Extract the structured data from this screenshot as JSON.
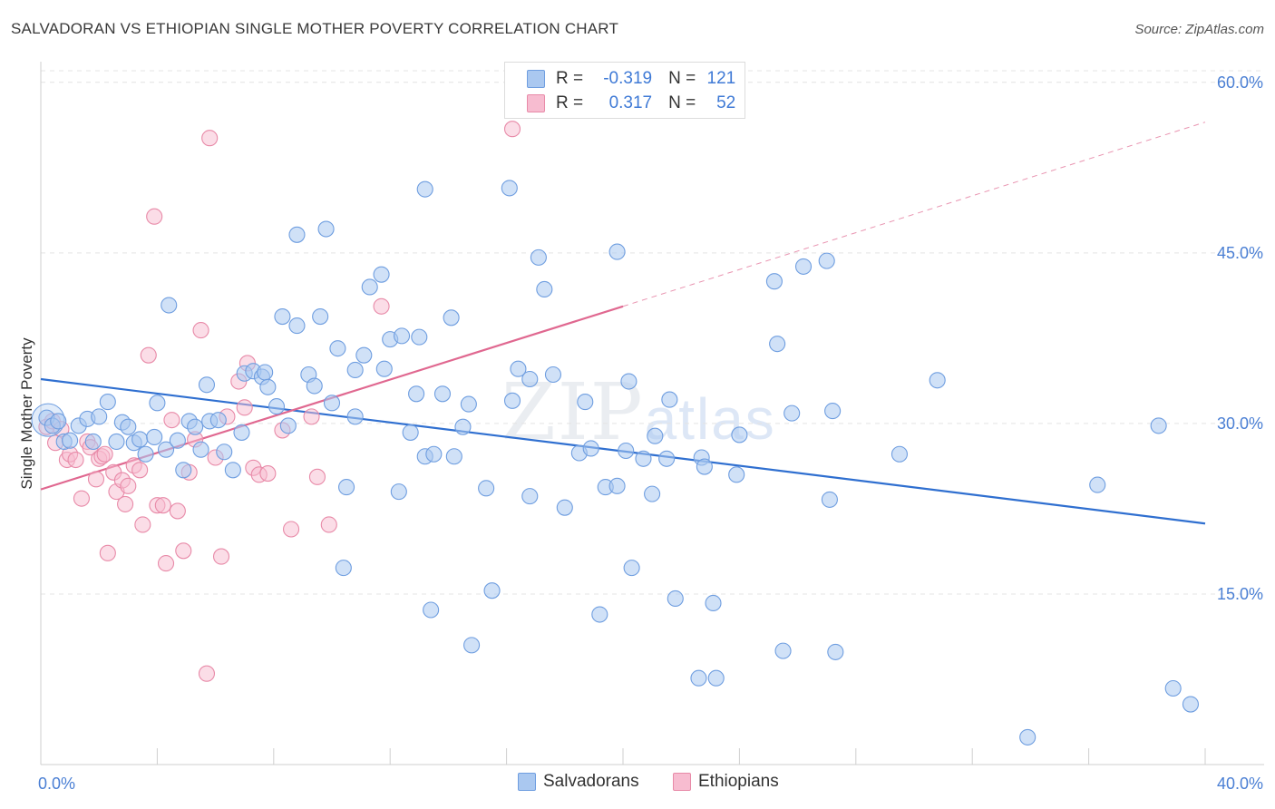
{
  "header": {
    "title": "SALVADORAN VS ETHIOPIAN SINGLE MOTHER POVERTY CORRELATION CHART",
    "source": "Source: ZipAtlas.com"
  },
  "watermark": {
    "zip": "ZIP",
    "atlas": "atlas"
  },
  "colors": {
    "salvadorans_fill": "#aac8f0",
    "salvadorans_stroke": "#6f9ee0",
    "salvadorans_line": "#2f6fd0",
    "ethiopians_fill": "#f7bcd0",
    "ethiopians_stroke": "#e88aa8",
    "ethiopians_line": "#e06890",
    "tick_label": "#4a7fd4",
    "grid": "#e4e4e4"
  },
  "legend_top": {
    "rows": [
      {
        "r_label": "R =",
        "r_value": "-0.319",
        "n_label": "N =",
        "n_value": "121"
      },
      {
        "r_label": "R =",
        "r_value": "0.317",
        "n_label": "N =",
        "n_value": "52"
      }
    ]
  },
  "legend_bottom": {
    "items": [
      {
        "label": "Salvadorans"
      },
      {
        "label": "Ethiopians"
      }
    ]
  },
  "chart_data": {
    "type": "scatter",
    "title": "SALVADORAN VS ETHIOPIAN SINGLE MOTHER POVERTY CORRELATION CHART",
    "xlabel": "",
    "ylabel": "Single Mother Poverty",
    "xlim": [
      0,
      42
    ],
    "ylim": [
      0,
      61.5
    ],
    "x_tick_labels": [
      "0.0%",
      "40.0%"
    ],
    "y_ticks": [
      15,
      30,
      45,
      60
    ],
    "y_tick_labels": [
      "15.0%",
      "30.0%",
      "45.0%",
      "60.0%"
    ],
    "grid": true,
    "legend_position": "top-center and bottom",
    "series": [
      {
        "name": "Salvadorans",
        "r": -0.319,
        "n": 121,
        "trend": {
          "x": [
            0,
            40
          ],
          "y": [
            33.9,
            21.2
          ]
        },
        "points": [
          [
            0.2,
            30.5
          ],
          [
            0.4,
            29.8
          ],
          [
            0.6,
            30.2
          ],
          [
            0.8,
            28.4
          ],
          [
            1.0,
            28.5
          ],
          [
            1.3,
            29.8
          ],
          [
            1.6,
            30.4
          ],
          [
            1.8,
            28.4
          ],
          [
            2.0,
            30.6
          ],
          [
            2.3,
            31.9
          ],
          [
            2.6,
            28.4
          ],
          [
            2.8,
            30.1
          ],
          [
            3.0,
            29.7
          ],
          [
            3.2,
            28.3
          ],
          [
            3.4,
            28.6
          ],
          [
            3.6,
            27.3
          ],
          [
            3.9,
            28.8
          ],
          [
            4.0,
            31.8
          ],
          [
            4.3,
            27.7
          ],
          [
            4.4,
            40.4
          ],
          [
            4.7,
            28.5
          ],
          [
            4.9,
            25.9
          ],
          [
            5.1,
            30.2
          ],
          [
            5.3,
            29.7
          ],
          [
            5.5,
            27.7
          ],
          [
            5.7,
            33.4
          ],
          [
            5.8,
            30.2
          ],
          [
            6.1,
            30.3
          ],
          [
            6.3,
            27.5
          ],
          [
            6.6,
            25.9
          ],
          [
            6.9,
            29.2
          ],
          [
            7.0,
            34.4
          ],
          [
            7.3,
            34.6
          ],
          [
            7.6,
            34.1
          ],
          [
            7.7,
            34.5
          ],
          [
            7.8,
            33.2
          ],
          [
            8.1,
            31.5
          ],
          [
            8.3,
            39.4
          ],
          [
            8.5,
            29.8
          ],
          [
            8.8,
            46.6
          ],
          [
            8.8,
            38.6
          ],
          [
            9.2,
            34.3
          ],
          [
            9.4,
            33.3
          ],
          [
            9.6,
            39.4
          ],
          [
            9.8,
            47.1
          ],
          [
            10.0,
            31.8
          ],
          [
            10.2,
            36.6
          ],
          [
            10.5,
            24.4
          ],
          [
            10.4,
            17.3
          ],
          [
            10.8,
            30.6
          ],
          [
            10.8,
            34.7
          ],
          [
            11.1,
            36.0
          ],
          [
            11.3,
            42.0
          ],
          [
            11.7,
            43.1
          ],
          [
            11.8,
            34.8
          ],
          [
            12.0,
            37.4
          ],
          [
            12.3,
            24.0
          ],
          [
            12.4,
            37.7
          ],
          [
            12.7,
            29.2
          ],
          [
            12.9,
            32.6
          ],
          [
            13.0,
            37.6
          ],
          [
            13.2,
            27.1
          ],
          [
            13.2,
            50.6
          ],
          [
            13.4,
            13.6
          ],
          [
            13.5,
            27.3
          ],
          [
            13.8,
            32.6
          ],
          [
            14.1,
            39.3
          ],
          [
            14.2,
            27.1
          ],
          [
            14.5,
            29.7
          ],
          [
            14.7,
            31.7
          ],
          [
            14.8,
            10.5
          ],
          [
            15.3,
            24.3
          ],
          [
            15.5,
            15.3
          ],
          [
            16.1,
            50.7
          ],
          [
            16.2,
            32.0
          ],
          [
            16.4,
            34.8
          ],
          [
            16.8,
            23.6
          ],
          [
            16.8,
            33.9
          ],
          [
            17.1,
            44.6
          ],
          [
            17.3,
            41.8
          ],
          [
            17.6,
            34.3
          ],
          [
            18.0,
            22.6
          ],
          [
            18.5,
            27.4
          ],
          [
            18.7,
            31.9
          ],
          [
            18.9,
            27.8
          ],
          [
            19.2,
            13.2
          ],
          [
            19.4,
            24.4
          ],
          [
            19.8,
            45.1
          ],
          [
            19.8,
            24.5
          ],
          [
            20.1,
            27.6
          ],
          [
            20.2,
            33.7
          ],
          [
            20.3,
            17.3
          ],
          [
            20.7,
            26.9
          ],
          [
            21.0,
            23.8
          ],
          [
            21.1,
            28.9
          ],
          [
            21.5,
            26.9
          ],
          [
            21.6,
            32.1
          ],
          [
            21.8,
            14.6
          ],
          [
            22.6,
            7.6
          ],
          [
            22.7,
            27.0
          ],
          [
            22.8,
            26.2
          ],
          [
            23.2,
            7.6
          ],
          [
            23.1,
            14.2
          ],
          [
            23.9,
            25.5
          ],
          [
            24.0,
            29.0
          ],
          [
            25.2,
            42.5
          ],
          [
            25.3,
            37.0
          ],
          [
            25.5,
            10.0
          ],
          [
            25.8,
            30.9
          ],
          [
            26.2,
            43.8
          ],
          [
            27.1,
            23.3
          ],
          [
            27.3,
            9.9
          ],
          [
            27.2,
            31.1
          ],
          [
            27.0,
            44.3
          ],
          [
            29.5,
            27.3
          ],
          [
            30.8,
            33.8
          ],
          [
            36.3,
            24.6
          ],
          [
            38.4,
            29.8
          ],
          [
            33.9,
            2.4
          ],
          [
            38.9,
            6.7
          ],
          [
            39.5,
            5.3
          ]
        ]
      },
      {
        "name": "Ethiopians",
        "r": 0.317,
        "n": 52,
        "trend": {
          "x": [
            0,
            20
          ],
          "y": [
            24.2,
            40.3
          ]
        },
        "trend_extension": {
          "x": [
            20,
            40
          ],
          "y": [
            40.3,
            56.5
          ]
        },
        "points": [
          [
            0.2,
            29.7
          ],
          [
            0.4,
            30.2
          ],
          [
            0.5,
            28.3
          ],
          [
            0.7,
            29.5
          ],
          [
            0.9,
            26.8
          ],
          [
            1.0,
            27.3
          ],
          [
            1.2,
            26.8
          ],
          [
            1.4,
            23.4
          ],
          [
            1.6,
            28.4
          ],
          [
            1.7,
            27.9
          ],
          [
            1.9,
            25.1
          ],
          [
            2.0,
            26.9
          ],
          [
            2.1,
            27.1
          ],
          [
            2.2,
            27.3
          ],
          [
            2.3,
            18.6
          ],
          [
            2.5,
            25.7
          ],
          [
            2.6,
            24.0
          ],
          [
            2.8,
            25.0
          ],
          [
            2.9,
            22.9
          ],
          [
            3.0,
            24.5
          ],
          [
            3.2,
            26.3
          ],
          [
            3.4,
            25.9
          ],
          [
            3.5,
            21.1
          ],
          [
            3.7,
            36.0
          ],
          [
            3.9,
            48.2
          ],
          [
            4.0,
            22.8
          ],
          [
            4.2,
            22.8
          ],
          [
            4.3,
            17.7
          ],
          [
            4.5,
            30.3
          ],
          [
            4.7,
            22.3
          ],
          [
            4.9,
            18.8
          ],
          [
            5.1,
            25.7
          ],
          [
            5.3,
            28.6
          ],
          [
            5.5,
            38.2
          ],
          [
            5.7,
            8.0
          ],
          [
            5.8,
            55.1
          ],
          [
            6.0,
            27.0
          ],
          [
            6.2,
            18.3
          ],
          [
            6.4,
            30.6
          ],
          [
            6.8,
            33.7
          ],
          [
            7.0,
            31.4
          ],
          [
            7.1,
            35.3
          ],
          [
            7.3,
            26.1
          ],
          [
            7.5,
            25.5
          ],
          [
            7.8,
            25.6
          ],
          [
            8.3,
            29.4
          ],
          [
            8.6,
            20.7
          ],
          [
            9.3,
            30.6
          ],
          [
            9.5,
            25.3
          ],
          [
            9.9,
            21.1
          ],
          [
            11.7,
            40.3
          ],
          [
            16.2,
            55.9
          ]
        ]
      }
    ]
  }
}
